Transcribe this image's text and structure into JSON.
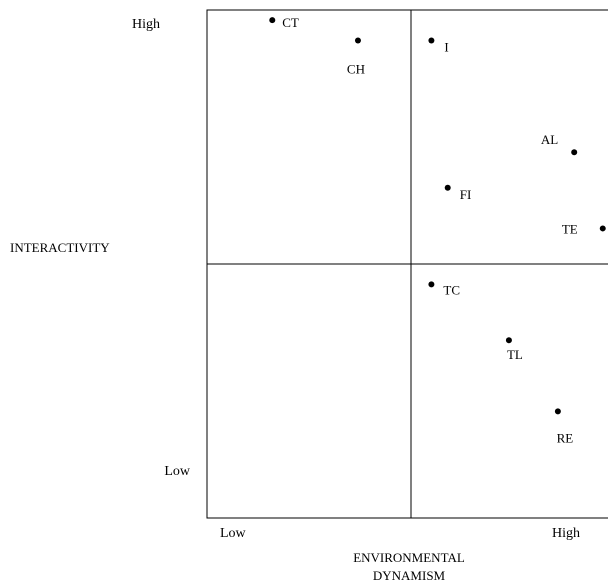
{
  "chart_data": {
    "type": "scatter",
    "xlabel_lines": [
      "ENVIRONMENTAL",
      "DYNAMISM"
    ],
    "ylabel": "INTERACTIVITY",
    "x_ticks": [
      "Low",
      "High"
    ],
    "y_ticks": [
      "High",
      "Low"
    ],
    "xlim": [
      0,
      10
    ],
    "ylim": [
      0,
      10
    ],
    "quadrant_dividers": {
      "x": 5,
      "y": 5
    },
    "grid": false,
    "legend": "none",
    "points": [
      {
        "label": "CT",
        "x": 1.6,
        "y": 9.8
      },
      {
        "label": "CH",
        "x": 3.7,
        "y": 9.4
      },
      {
        "label": "I",
        "x": 5.5,
        "y": 9.4
      },
      {
        "label": "AL",
        "x": 9.0,
        "y": 7.2
      },
      {
        "label": "FI",
        "x": 5.9,
        "y": 6.5
      },
      {
        "label": "TE",
        "x": 9.7,
        "y": 5.7
      },
      {
        "label": "TC",
        "x": 5.5,
        "y": 4.6
      },
      {
        "label": "TL",
        "x": 7.4,
        "y": 3.5
      },
      {
        "label": "RE",
        "x": 8.6,
        "y": 2.1
      }
    ],
    "marker_color": "#000000",
    "line_color": "#000000"
  }
}
